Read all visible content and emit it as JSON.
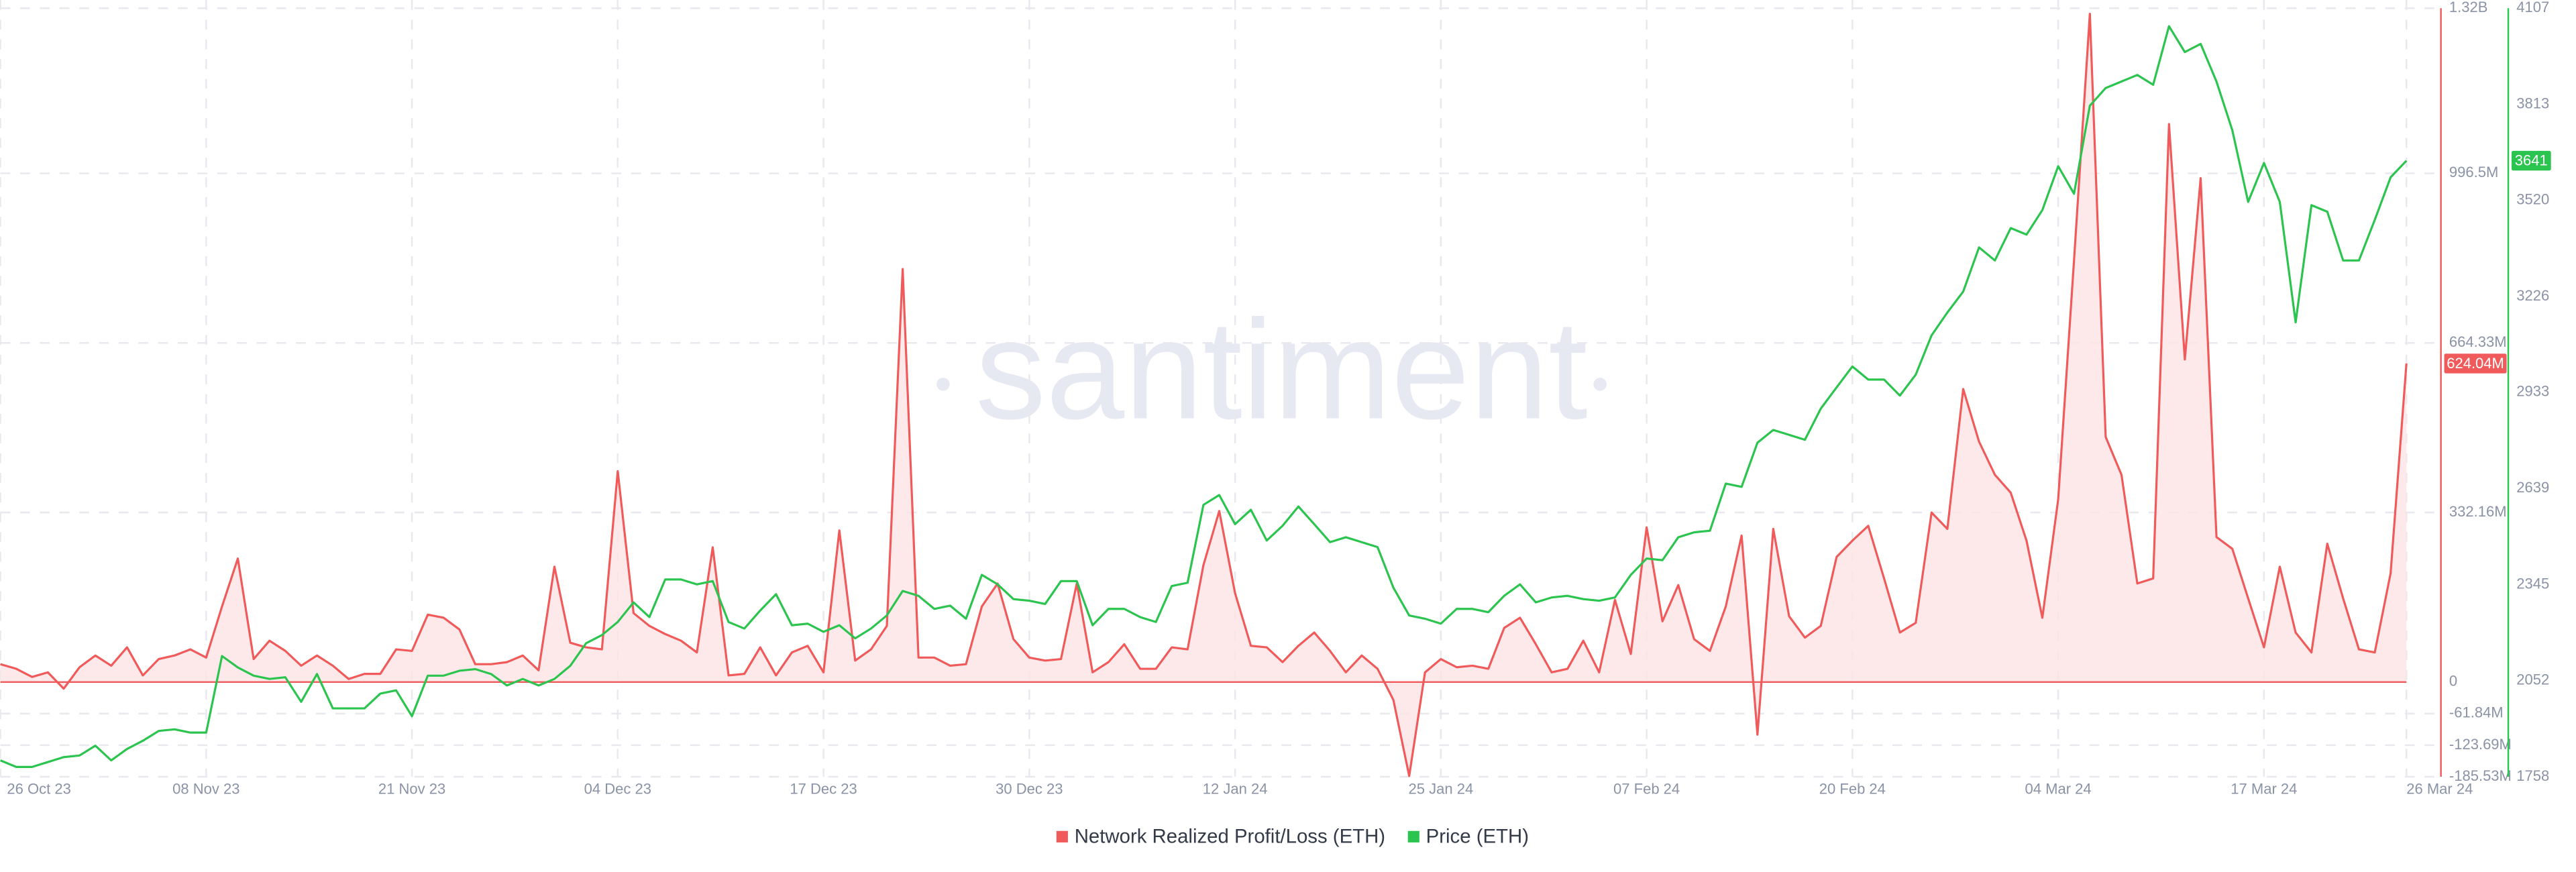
{
  "chart_data": {
    "type": "line",
    "watermark": "santiment",
    "categories": [
      "26 Oct 23",
      null,
      null,
      null,
      null,
      null,
      null,
      null,
      null,
      null,
      null,
      null,
      null,
      "08 Nov 23",
      null,
      null,
      null,
      null,
      null,
      null,
      null,
      null,
      null,
      null,
      null,
      null,
      "21 Nov 23",
      null,
      null,
      null,
      null,
      null,
      null,
      null,
      null,
      null,
      null,
      null,
      null,
      "04 Dec 23",
      null,
      null,
      null,
      null,
      null,
      null,
      null,
      null,
      null,
      null,
      null,
      null,
      "17 Dec 23",
      null,
      null,
      null,
      null,
      null,
      null,
      null,
      null,
      null,
      null,
      null,
      null,
      "30 Dec 23",
      null,
      null,
      null,
      null,
      null,
      null,
      null,
      null,
      null,
      null,
      null,
      null,
      "12 Jan 24",
      null,
      null,
      null,
      null,
      null,
      null,
      null,
      null,
      null,
      null,
      null,
      null,
      "25 Jan 24",
      null,
      null,
      null,
      null,
      null,
      null,
      null,
      null,
      null,
      null,
      null,
      null,
      "07 Feb 24",
      null,
      null,
      null,
      null,
      null,
      null,
      null,
      null,
      null,
      null,
      null,
      null,
      "20 Feb 24",
      null,
      null,
      null,
      null,
      null,
      null,
      null,
      null,
      null,
      null,
      null,
      null,
      "04 Mar 24",
      null,
      null,
      null,
      null,
      null,
      null,
      null,
      null,
      null,
      null,
      null,
      null,
      "17 Mar 24",
      null,
      null,
      null,
      null,
      null,
      null,
      null,
      null,
      "26 Mar 24"
    ],
    "series": [
      {
        "name": "Network Realized Profit/Loss (ETH)",
        "color": "#f05a5a",
        "fill": "#fde4e4",
        "last_label": "624.04M",
        "values": [
          35000000.0,
          26000000.0,
          10000000.0,
          19000000.0,
          -13000000.0,
          29000000.0,
          52000000.0,
          32000000.0,
          68000000.0,
          13000000.0,
          45000000.0,
          52000000.0,
          64000000.0,
          48000000.0,
          148000000.0,
          242000000.0,
          45000000.0,
          81000000.0,
          61000000.0,
          32000000.0,
          52000000.0,
          32000000.0,
          6000000.0,
          16000000.0,
          16000000.0,
          64000000.0,
          61000000.0,
          132000000.0,
          126000000.0,
          103000000.0,
          35000000.0,
          35000000.0,
          39000000.0,
          52000000.0,
          23000000.0,
          226000000.0,
          77000000.0,
          68000000.0,
          64000000.0,
          413000000.0,
          135000000.0,
          110000000.0,
          94000000.0,
          81000000.0,
          58000000.0,
          264000000.0,
          13000000.0,
          16000000.0,
          68000000.0,
          13000000.0,
          58000000.0,
          71000000.0,
          19000000.0,
          297000000.0,
          42000000.0,
          64000000.0,
          110000000.0,
          809000000.0,
          48000000.0,
          48000000.0,
          32000000.0,
          35000000.0,
          148000000.0,
          193000000.0,
          84000000.0,
          48000000.0,
          42000000.0,
          45000000.0,
          193000000.0,
          19000000.0,
          39000000.0,
          74000000.0,
          26000000.0,
          26000000.0,
          68000000.0,
          64000000.0,
          229000000.0,
          335000000.0,
          174000000.0,
          71000000.0,
          68000000.0,
          39000000.0,
          71000000.0,
          97000000.0,
          61000000.0,
          19000000.0,
          52000000.0,
          26000000.0,
          -35000000.0,
          -184000000.0,
          19000000.0,
          45000000.0,
          29000000.0,
          32000000.0,
          26000000.0,
          106000000.0,
          126000000.0,
          74000000.0,
          19000000.0,
          26000000.0,
          81000000.0,
          19000000.0,
          161000000.0,
          55000000.0,
          303000000.0,
          119000000.0,
          190000000.0,
          84000000.0,
          61000000.0,
          148000000.0,
          287000000.0,
          -103000000.0,
          300000000.0,
          129000000.0,
          87000000.0,
          110000000.0,
          245000000.0,
          277000000.0,
          306000000.0,
          203000000.0,
          97000000.0,
          116000000.0,
          332000000.0,
          300000000.0,
          574000000.0,
          471000000.0,
          406000000.0,
          371000000.0,
          277000000.0,
          126000000.0,
          358000000.0,
          826000000.0,
          1309000000.0,
          480000000.0,
          406000000.0,
          193000000.0,
          203000000.0,
          1093000000.0,
          632000000.0,
          987000000.0,
          284000000.0,
          261000000.0,
          164000000.0,
          68000000.0,
          226000000.0,
          97000000.0,
          58000000.0,
          271000000.0,
          164000000.0,
          64000000.0,
          58000000.0,
          213000000.0,
          624040000.0
        ]
      },
      {
        "name": "Price (ETH)",
        "color": "#2bc44f",
        "axis": "y2",
        "last_label": "3641",
        "values": [
          1808,
          1788,
          1788,
          1803,
          1818,
          1823,
          1853,
          1808,
          1843,
          1868,
          1898,
          1903,
          1893,
          1893,
          2127,
          2092,
          2067,
          2057,
          2062,
          1987,
          2072,
          1967,
          1967,
          1967,
          2012,
          2022,
          1943,
          2067,
          2067,
          2082,
          2087,
          2072,
          2037,
          2057,
          2037,
          2057,
          2097,
          2166,
          2191,
          2231,
          2291,
          2246,
          2361,
          2361,
          2346,
          2356,
          2231,
          2211,
          2266,
          2316,
          2221,
          2226,
          2201,
          2221,
          2181,
          2211,
          2251,
          2326,
          2311,
          2271,
          2281,
          2241,
          2375,
          2346,
          2301,
          2296,
          2286,
          2356,
          2356,
          2221,
          2271,
          2271,
          2246,
          2231,
          2341,
          2351,
          2589,
          2619,
          2530,
          2574,
          2480,
          2525,
          2584,
          2530,
          2475,
          2490,
          2475,
          2460,
          2336,
          2251,
          2241,
          2226,
          2271,
          2271,
          2261,
          2311,
          2346,
          2291,
          2306,
          2311,
          2301,
          2296,
          2306,
          2375,
          2425,
          2420,
          2490,
          2505,
          2510,
          2654,
          2644,
          2779,
          2818,
          2803,
          2788,
          2883,
          2948,
          3012,
          2972,
          2972,
          2923,
          2987,
          3107,
          3177,
          3241,
          3376,
          3336,
          3435,
          3415,
          3490,
          3624,
          3540,
          3809,
          3863,
          3883,
          3903,
          3873,
          4052,
          3973,
          3998,
          3883,
          3734,
          3515,
          3634,
          3515,
          3147,
          3505,
          3485,
          3336,
          3336,
          3460,
          3590,
          3641
        ]
      }
    ],
    "ylim": [
      -185530000.0,
      1320000000.0
    ],
    "yticks": [
      {
        "value": -185530000.0,
        "label": "-185.53M"
      },
      {
        "value": -123690000.0,
        "label": "-123.69M"
      },
      {
        "value": -61840000.0,
        "label": "-61.84M"
      },
      0,
      {
        "value": 332160000.0,
        "label": "332.16M"
      },
      {
        "value": 664330000.0,
        "label": "664.33M"
      },
      {
        "value": 996500000.0,
        "label": "996.5M"
      },
      {
        "value": 1320000000.0,
        "label": "1.32B"
      }
    ],
    "y2lim": [
      1758,
      4107
    ],
    "y2ticks": [
      1758,
      2052,
      2345,
      2639,
      2933,
      3226,
      3520,
      3813,
      4107
    ],
    "grid": true
  }
}
